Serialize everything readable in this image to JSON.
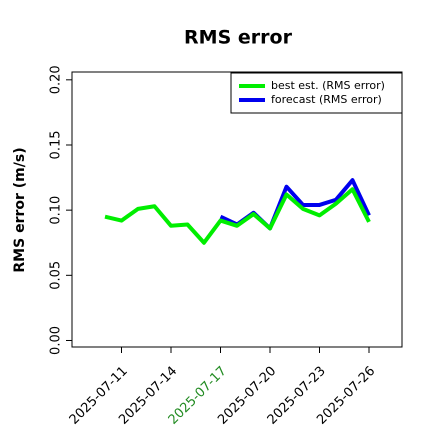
{
  "chart_data": {
    "type": "line",
    "title": "RMS error",
    "ylabel": "RMS error (m/s)",
    "x": [
      "2025-07-10",
      "2025-07-11",
      "2025-07-12",
      "2025-07-13",
      "2025-07-14",
      "2025-07-15",
      "2025-07-16",
      "2025-07-17",
      "2025-07-18",
      "2025-07-19",
      "2025-07-20",
      "2025-07-21",
      "2025-07-22",
      "2025-07-23",
      "2025-07-24",
      "2025-07-25",
      "2025-07-26"
    ],
    "series": [
      {
        "name": "best est. (RMS error)",
        "color": "#00ee00",
        "values": [
          0.095,
          0.092,
          0.101,
          0.103,
          0.088,
          0.089,
          0.075,
          0.092,
          0.088,
          0.097,
          0.086,
          0.112,
          0.101,
          0.096,
          0.105,
          0.116,
          0.091
        ]
      },
      {
        "name": "forecast (RMS error)",
        "color": "#0000ee",
        "values": [
          null,
          null,
          null,
          null,
          null,
          null,
          null,
          0.095,
          0.089,
          0.098,
          0.086,
          0.118,
          0.104,
          0.104,
          0.108,
          0.123,
          0.096
        ]
      }
    ],
    "xlim": [
      "2025-07-08",
      "2025-07-28"
    ],
    "xticks": [
      "2025-07-11",
      "2025-07-14",
      "2025-07-17",
      "2025-07-20",
      "2025-07-23",
      "2025-07-26"
    ],
    "xtick_colors": [
      "#000000",
      "#000000",
      "#228b22",
      "#000000",
      "#000000",
      "#000000"
    ],
    "ylim": [
      -0.005,
      0.206
    ],
    "yticks": [
      {
        "value": 0,
        "label": "0.00"
      },
      {
        "value": 0.05,
        "label": "0.05"
      },
      {
        "value": 0.1,
        "label": "0.10"
      },
      {
        "value": 0.15,
        "label": "0.15"
      },
      {
        "value": 0.2,
        "label": "0.20"
      }
    ],
    "legend": "upper right"
  }
}
